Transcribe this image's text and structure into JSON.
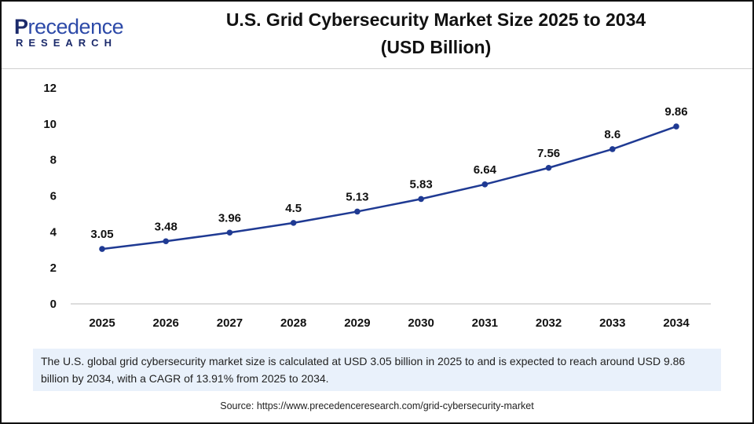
{
  "logo": {
    "line1_initial": "P",
    "line1_rest": "recedence",
    "line2": "RESEARCH"
  },
  "title": {
    "line1": "U.S. Grid Cybersecurity Market Size 2025 to 2034",
    "line2": "(USD Billion)"
  },
  "chart_data": {
    "type": "line",
    "title": "U.S. Grid Cybersecurity Market Size 2025 to 2034 (USD Billion)",
    "categories": [
      "2025",
      "2026",
      "2027",
      "2028",
      "2029",
      "2030",
      "2031",
      "2032",
      "2033",
      "2034"
    ],
    "values": [
      3.05,
      3.48,
      3.96,
      4.5,
      5.13,
      5.83,
      6.64,
      7.56,
      8.6,
      9.86
    ],
    "data_labels": [
      "3.05",
      "3.48",
      "3.96",
      "4.5",
      "5.13",
      "5.83",
      "6.64",
      "7.56",
      "8.6",
      "9.86"
    ],
    "ylim": [
      0,
      12
    ],
    "yticks": [
      "0",
      "2",
      "4",
      "6",
      "8",
      "10",
      "12"
    ],
    "grid": false,
    "line_color": "#1f3a93",
    "xlabel": "",
    "ylabel": ""
  },
  "info_text": "The U.S. global grid cybersecurity market size is calculated at USD 3.05 billion in 2025 to and is expected to reach around USD 9.86 billion by 2034, with a CAGR of 13.91% from 2025 to 2034.",
  "source": "Source: https://www.precedenceresearch.com/grid-cybersecurity-market"
}
